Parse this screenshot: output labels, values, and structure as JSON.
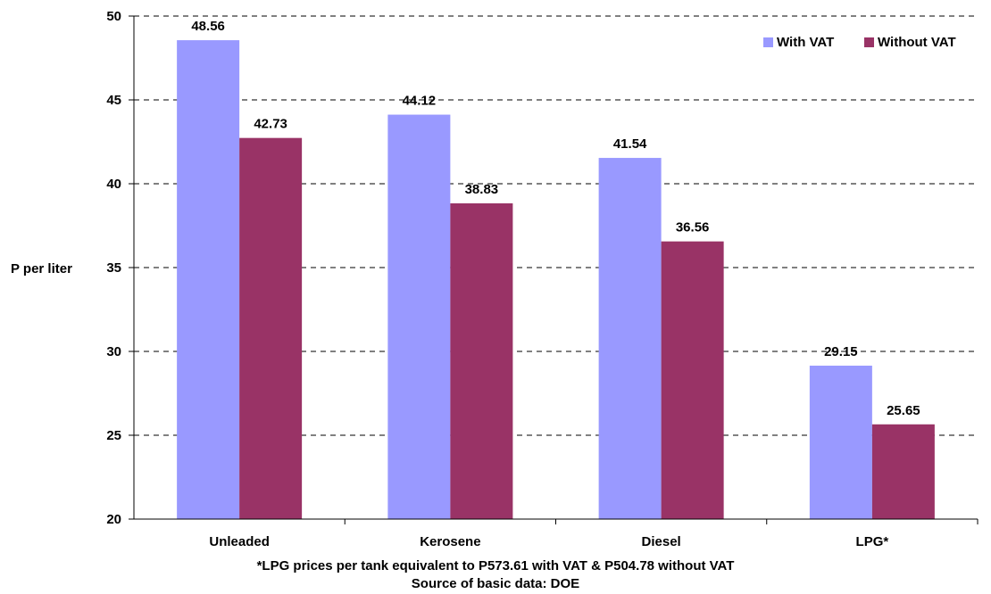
{
  "chart_data": {
    "type": "bar",
    "categories": [
      "Unleaded",
      "Kerosene",
      "Diesel",
      "LPG*"
    ],
    "series": [
      {
        "name": "With VAT",
        "color": "#9999FF",
        "values": [
          48.56,
          44.12,
          41.54,
          29.15
        ]
      },
      {
        "name": "Without VAT",
        "color": "#993366",
        "values": [
          42.73,
          38.83,
          36.56,
          25.65
        ]
      }
    ],
    "ylabel": "P per liter",
    "ylim": [
      20,
      50
    ],
    "yticks": [
      20,
      25,
      30,
      35,
      40,
      45,
      50
    ],
    "grid": true,
    "legend_position": "top-right"
  },
  "notes": {
    "footnote": "*LPG prices per tank equivalent to P573.61 with VAT & P504.78 without VAT",
    "source": "Source of basic data: DOE"
  }
}
